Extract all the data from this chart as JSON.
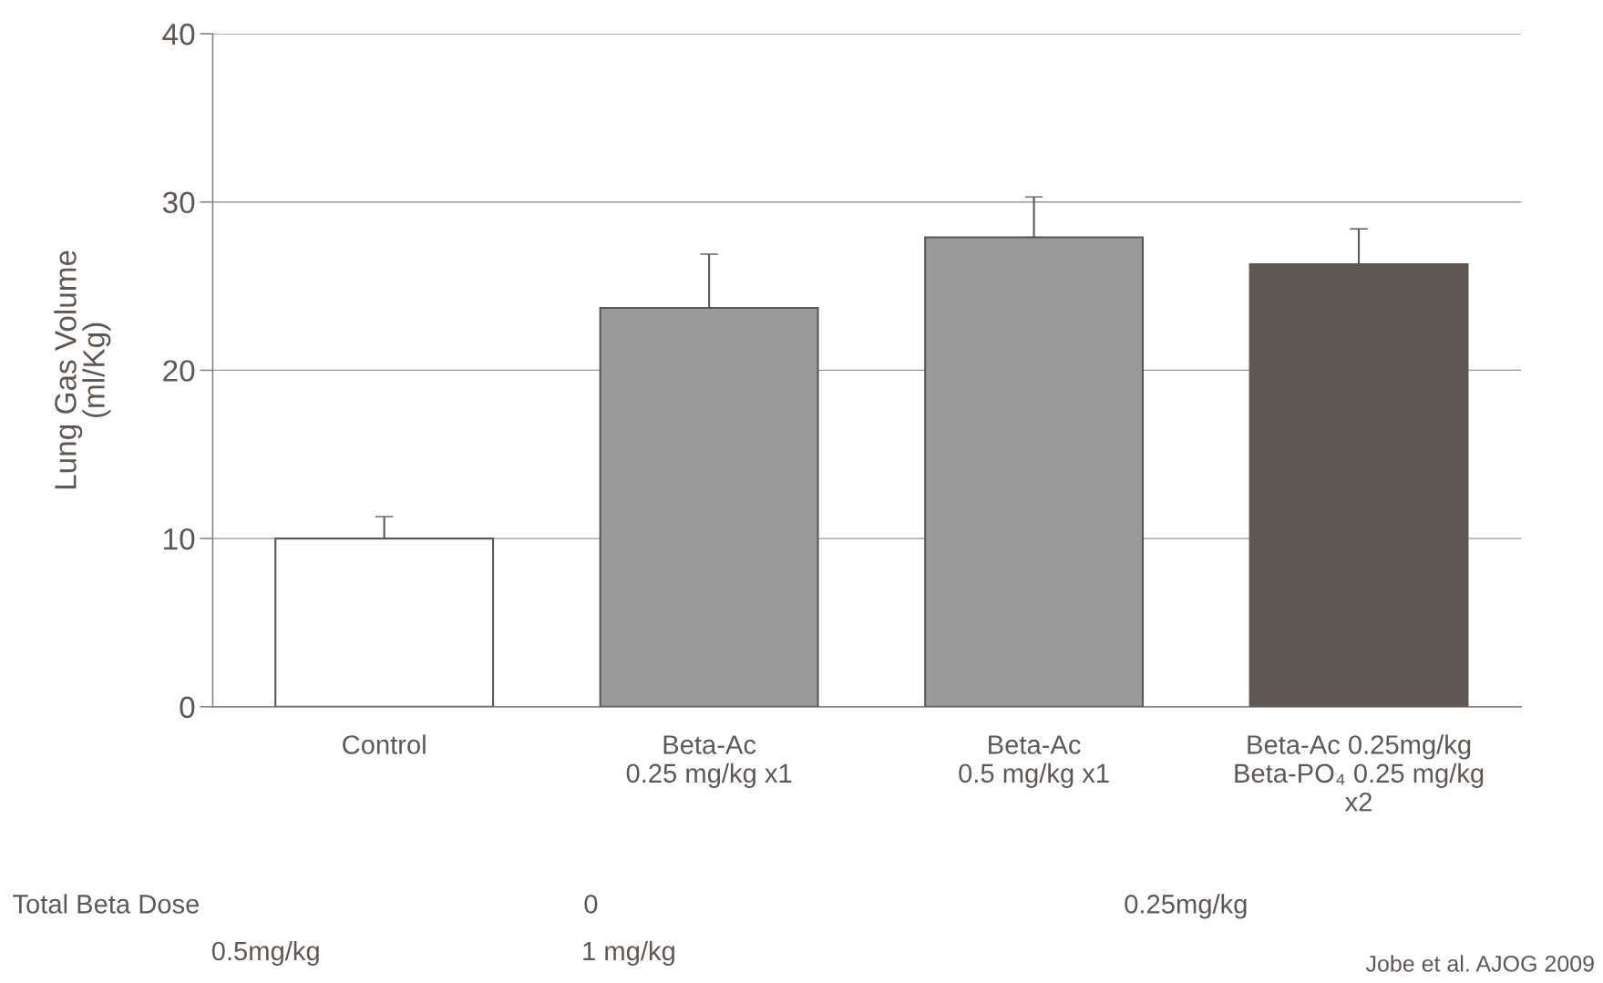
{
  "chart_data": {
    "type": "bar",
    "categories": [
      "Control",
      "Beta-Ac\n0.25 mg/kg x1",
      "Beta-Ac\n0.5 mg/kg x1",
      "Beta-Ac 0.25mg/kg\nBeta-PO₄ 0.25 mg/kg\nx2"
    ],
    "values": [
      10.0,
      23.7,
      27.9,
      26.3
    ],
    "errors": [
      1.3,
      3.2,
      2.4,
      2.1
    ],
    "colors": [
      "#ffffff",
      "#9a9a9a",
      "#9a9a9a",
      "#5f5753"
    ],
    "ylabel": "Lung Gas Volume\n(ml/Kg)",
    "ylim": [
      0,
      40
    ],
    "yticks": [
      0,
      10,
      20,
      30,
      40
    ],
    "grid": "y",
    "annotations": [
      "Total Beta Dose",
      "0",
      "0.25mg/kg",
      "0.5mg/kg",
      "1 mg/kg",
      "Jobe et al. AJOG 2009"
    ]
  }
}
